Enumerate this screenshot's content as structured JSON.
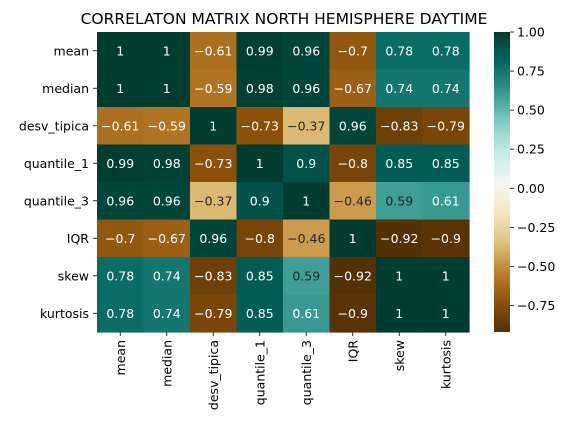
{
  "chart_data": {
    "type": "heatmap",
    "title": "CORRELATON MATRIX NORTH HEMISPHERE DAYTIME",
    "x_labels": [
      "mean",
      "median",
      "desv_tipica",
      "quantile_1",
      "quantile_3",
      "IQR",
      "skew",
      "kurtosis"
    ],
    "y_labels": [
      "mean",
      "median",
      "desv_tipica",
      "quantile_1",
      "quantile_3",
      "IQR",
      "skew",
      "kurtosis"
    ],
    "values": [
      [
        1,
        1,
        -0.61,
        0.99,
        0.96,
        -0.7,
        0.78,
        0.78
      ],
      [
        1,
        1,
        -0.59,
        0.98,
        0.96,
        -0.67,
        0.74,
        0.74
      ],
      [
        -0.61,
        -0.59,
        1,
        -0.73,
        -0.37,
        0.96,
        -0.83,
        -0.79
      ],
      [
        0.99,
        0.98,
        -0.73,
        1,
        0.9,
        -0.8,
        0.85,
        0.85
      ],
      [
        0.96,
        0.96,
        -0.37,
        0.9,
        1,
        -0.46,
        0.59,
        0.61
      ],
      [
        -0.7,
        -0.67,
        0.96,
        -0.8,
        -0.46,
        1,
        -0.92,
        -0.9
      ],
      [
        0.78,
        0.74,
        -0.83,
        0.85,
        0.59,
        -0.92,
        1,
        1
      ],
      [
        0.78,
        0.74,
        -0.79,
        0.85,
        0.61,
        -0.9,
        1,
        1
      ]
    ],
    "colorbar": {
      "vmin": -0.92,
      "vmax": 1,
      "ticks": [
        1.0,
        0.75,
        0.5,
        0.25,
        0.0,
        -0.25,
        -0.5,
        -0.75
      ],
      "tick_labels": [
        "1.00",
        "0.75",
        "0.50",
        "0.25",
        "0.00",
        "−0.25",
        "−0.50",
        "−0.75"
      ]
    },
    "colormap": "BrBG",
    "colormap_stops": [
      "#543005",
      "#8c510a",
      "#bf812d",
      "#dfc27d",
      "#f6e8c3",
      "#f5f5f5",
      "#c7eae5",
      "#80cdc1",
      "#35978f",
      "#01665e",
      "#003c30"
    ],
    "annotations": true,
    "grid": false,
    "legend": "colorbar-right"
  }
}
